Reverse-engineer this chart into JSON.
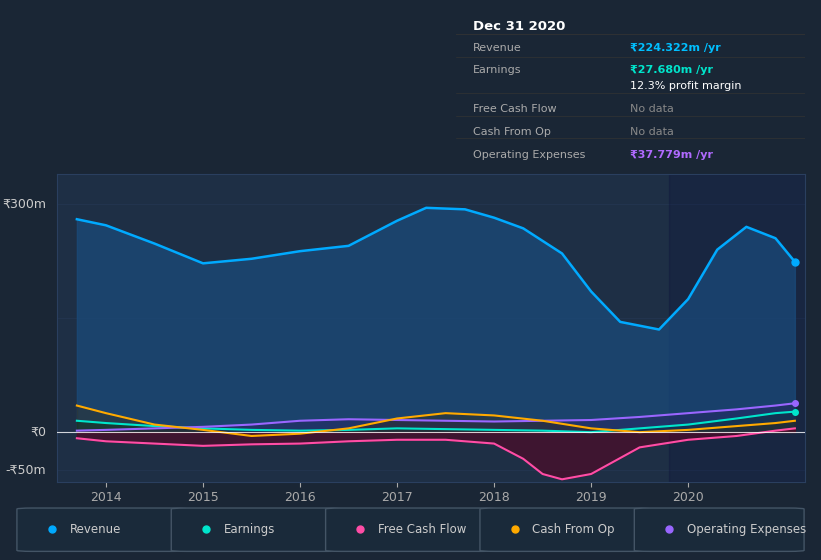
{
  "bg_color": "#1a2635",
  "plot_bg_color": "#1e2f45",
  "grid_color": "#2a3f5f",
  "zero_line_color": "#ffffff",
  "title_box": {
    "title": "Dec 31 2020",
    "rows": [
      {
        "label": "Revenue",
        "value": "₹224.322m /yr",
        "value_color": "#00bfff"
      },
      {
        "label": "Earnings",
        "value": "₹27.680m /yr",
        "value_color": "#00e5cc"
      },
      {
        "label": "",
        "value": "12.3% profit margin",
        "value_color": "#ffffff"
      },
      {
        "label": "Free Cash Flow",
        "value": "No data",
        "value_color": "#888888"
      },
      {
        "label": "Cash From Op",
        "value": "No data",
        "value_color": "#888888"
      },
      {
        "label": "Operating Expenses",
        "value": "₹37.779m /yr",
        "value_color": "#b06aff"
      }
    ]
  },
  "ylim": [
    -65,
    340
  ],
  "yticks_labels": [
    "₹300m",
    "₹0",
    "-₹50m"
  ],
  "yticks_values": [
    300,
    0,
    -50
  ],
  "xlim": [
    2013.5,
    2021.2
  ],
  "xticks": [
    2014,
    2015,
    2016,
    2017,
    2018,
    2019,
    2020
  ],
  "series": {
    "revenue": {
      "color": "#00aaff",
      "fill_color": "#1a4a7a",
      "label": "Revenue",
      "x": [
        2013.7,
        2014.0,
        2014.5,
        2015.0,
        2015.5,
        2016.0,
        2016.5,
        2017.0,
        2017.3,
        2017.7,
        2018.0,
        2018.3,
        2018.7,
        2019.0,
        2019.3,
        2019.7,
        2020.0,
        2020.3,
        2020.6,
        2020.9,
        2021.1
      ],
      "y": [
        280,
        272,
        248,
        222,
        228,
        238,
        245,
        278,
        295,
        293,
        282,
        268,
        235,
        185,
        145,
        135,
        175,
        240,
        270,
        255,
        224
      ]
    },
    "earnings": {
      "color": "#00e5cc",
      "fill_color": "#003d33",
      "label": "Earnings",
      "x": [
        2013.7,
        2014.0,
        2014.5,
        2015.0,
        2015.5,
        2016.0,
        2016.5,
        2017.0,
        2017.5,
        2018.0,
        2018.5,
        2019.0,
        2019.5,
        2020.0,
        2020.5,
        2020.9,
        2021.1
      ],
      "y": [
        15,
        12,
        8,
        5,
        3,
        2,
        3,
        5,
        4,
        3,
        2,
        0,
        5,
        10,
        18,
        25,
        27
      ]
    },
    "free_cash_flow": {
      "color": "#ff4da6",
      "fill_color": "#5a0020",
      "label": "Free Cash Flow",
      "x": [
        2013.7,
        2014.0,
        2014.5,
        2015.0,
        2015.5,
        2016.0,
        2016.5,
        2017.0,
        2017.5,
        2018.0,
        2018.3,
        2018.5,
        2018.7,
        2019.0,
        2019.5,
        2020.0,
        2020.5,
        2020.9,
        2021.1
      ],
      "y": [
        -8,
        -12,
        -15,
        -18,
        -16,
        -15,
        -12,
        -10,
        -10,
        -15,
        -35,
        -55,
        -62,
        -55,
        -20,
        -10,
        -5,
        2,
        5
      ]
    },
    "cash_from_op": {
      "color": "#ffaa00",
      "fill_color": "#3d2800",
      "label": "Cash From Op",
      "x": [
        2013.7,
        2014.0,
        2014.5,
        2015.0,
        2015.5,
        2016.0,
        2016.5,
        2017.0,
        2017.5,
        2018.0,
        2018.5,
        2019.0,
        2019.5,
        2020.0,
        2020.5,
        2020.9,
        2021.1
      ],
      "y": [
        35,
        25,
        10,
        3,
        -5,
        -2,
        5,
        18,
        25,
        22,
        15,
        5,
        0,
        3,
        8,
        12,
        15
      ]
    },
    "operating_expenses": {
      "color": "#9966ff",
      "fill_color": "#2a1a5e",
      "label": "Operating Expenses",
      "x": [
        2013.7,
        2014.0,
        2014.5,
        2015.0,
        2015.5,
        2016.0,
        2016.5,
        2017.0,
        2017.5,
        2018.0,
        2018.5,
        2019.0,
        2019.5,
        2020.0,
        2020.5,
        2020.9,
        2021.1
      ],
      "y": [
        2,
        3,
        5,
        7,
        10,
        15,
        17,
        16,
        15,
        14,
        15,
        16,
        20,
        25,
        30,
        35,
        38
      ]
    }
  },
  "legend": [
    {
      "label": "Revenue",
      "color": "#00aaff"
    },
    {
      "label": "Earnings",
      "color": "#00e5cc"
    },
    {
      "label": "Free Cash Flow",
      "color": "#ff4da6"
    },
    {
      "label": "Cash From Op",
      "color": "#ffaa00"
    },
    {
      "label": "Operating Expenses",
      "color": "#9966ff"
    }
  ]
}
